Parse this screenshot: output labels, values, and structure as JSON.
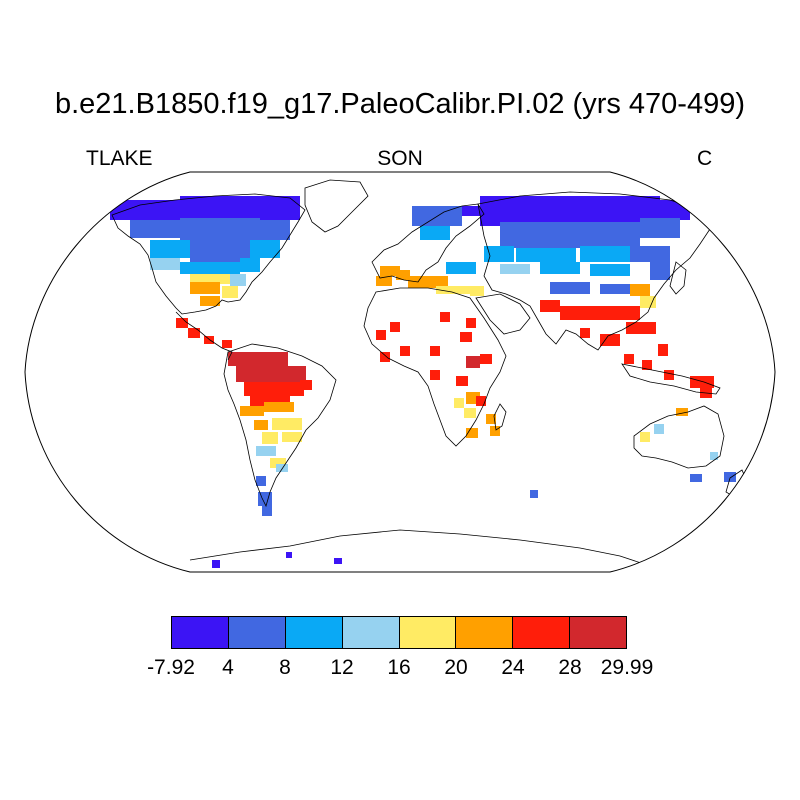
{
  "title": "b.e21.B1850.f19_g17.PaleoCalibr.PI.02 (yrs 470-499)",
  "left_label": "TLAKE",
  "center_label": "SON",
  "right_label": "C",
  "colorbar": {
    "colors": [
      "#3c14f5",
      "#4168e1",
      "#0aa9f5",
      "#96d2f0",
      "#ffeb64",
      "#ffa000",
      "#ff1e0a",
      "#d2282d"
    ],
    "labels": [
      "-7.92",
      "4",
      "8",
      "12",
      "16",
      "20",
      "24",
      "28",
      "29.99"
    ]
  },
  "map": {
    "projection": "Robinson",
    "field": "TLAKE",
    "units": "C",
    "background": "#ffffff",
    "coastline_color": "#000000"
  }
}
